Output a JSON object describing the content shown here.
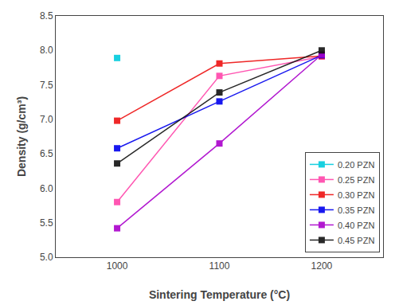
{
  "chart_data": {
    "type": "line",
    "xlabel": "Sintering Temperature (°C)",
    "ylabel": "Density (g/cm³)",
    "xlim": [
      940,
      1260
    ],
    "ylim": [
      5.0,
      8.5
    ],
    "xticks": [
      1000,
      1100,
      1200
    ],
    "yticks": [
      {
        "value": 5.0,
        "label": "5.0"
      },
      5.5,
      {
        "value": 6.0,
        "label": "6.0"
      },
      6.5,
      {
        "value": 7.0,
        "label": "7.0"
      },
      7.5,
      {
        "value": 8.0,
        "label": "8.0"
      },
      8.5
    ],
    "grid": false,
    "legend": "lower right",
    "marker": "square",
    "line_style": "solid",
    "series": [
      {
        "name": "0.20 PZN",
        "color": "#00CCDD",
        "x": [
          1000
        ],
        "values": [
          7.89
        ]
      },
      {
        "name": "0.25 PZN",
        "color": "#FF44AA",
        "x": [
          1000,
          1100,
          1200
        ],
        "values": [
          5.8,
          7.63,
          7.91
        ]
      },
      {
        "name": "0.30 PZN",
        "color": "#EE1111",
        "x": [
          1000,
          1100,
          1200
        ],
        "values": [
          6.98,
          7.81,
          7.92
        ]
      },
      {
        "name": "0.35 PZN",
        "color": "#0000EE",
        "x": [
          1000,
          1100,
          1200
        ],
        "values": [
          6.58,
          7.26,
          7.93
        ]
      },
      {
        "name": "0.40 PZN",
        "color": "#AA00CC",
        "x": [
          1000,
          1100,
          1200
        ],
        "values": [
          5.42,
          6.65,
          7.94
        ]
      },
      {
        "name": "0.45 PZN",
        "color": "#111111",
        "x": [
          1000,
          1100,
          1200
        ],
        "values": [
          6.36,
          7.39,
          8.0
        ]
      }
    ]
  }
}
